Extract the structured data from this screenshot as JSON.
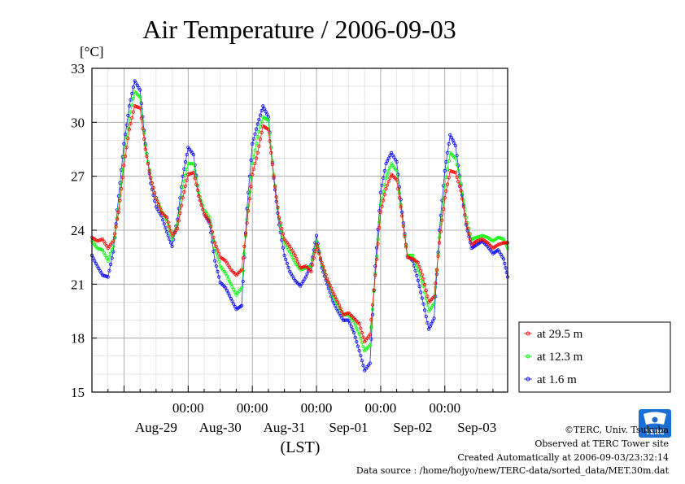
{
  "chart_data": {
    "type": "line",
    "title": "Air Temperature / 2006-09-03",
    "ylabel": "[°C]",
    "xlabel": "(LST)",
    "ylim": [
      15,
      33
    ],
    "yticks": [
      15,
      18,
      21,
      24,
      27,
      30,
      33
    ],
    "xlim": [
      "2006-08-28 12:00",
      "2006-09-03 23:30"
    ],
    "xticks": [
      {
        "time": "2006-08-30 00:00",
        "label": "00:00"
      },
      {
        "time": "2006-08-31 00:00",
        "label": "00:00"
      },
      {
        "time": "2006-09-01 00:00",
        "label": "00:00"
      },
      {
        "time": "2006-09-02 00:00",
        "label": "00:00"
      },
      {
        "time": "2006-09-03 00:00",
        "label": "00:00"
      }
    ],
    "day_labels": [
      {
        "time": "2006-08-29 12:00",
        "label": "Aug-29"
      },
      {
        "time": "2006-08-30 12:00",
        "label": "Aug-30"
      },
      {
        "time": "2006-08-31 12:00",
        "label": "Aug-31"
      },
      {
        "time": "2006-09-01 12:00",
        "label": "Sep-01"
      },
      {
        "time": "2006-09-02 12:00",
        "label": "Sep-02"
      },
      {
        "time": "2006-09-03 12:00",
        "label": "Sep-03"
      }
    ],
    "grid": true,
    "legend_position": "right",
    "series": [
      {
        "name": "at 29.5 m",
        "color": "#ff0000",
        "points": [
          [
            "2006-08-28 12:00",
            23.6
          ],
          [
            "2006-08-28 14:00",
            23.4
          ],
          [
            "2006-08-28 16:00",
            23.5
          ],
          [
            "2006-08-28 18:00",
            23.0
          ],
          [
            "2006-08-28 20:00",
            23.4
          ],
          [
            "2006-08-28 22:00",
            25.0
          ],
          [
            "2006-08-29 00:00",
            27.6
          ],
          [
            "2006-08-29 02:00",
            29.6
          ],
          [
            "2006-08-29 04:00",
            30.9
          ],
          [
            "2006-08-29 06:00",
            30.8
          ],
          [
            "2006-08-29 08:00",
            28.5
          ],
          [
            "2006-08-29 10:00",
            26.9
          ],
          [
            "2006-08-29 12:00",
            25.8
          ],
          [
            "2006-08-29 14:00",
            25.0
          ],
          [
            "2006-08-29 16:00",
            24.7
          ],
          [
            "2006-08-29 18:00",
            23.7
          ],
          [
            "2006-08-29 20:00",
            24.1
          ],
          [
            "2006-08-29 22:00",
            25.8
          ],
          [
            "2006-08-30 00:00",
            27.1
          ],
          [
            "2006-08-30 02:00",
            27.2
          ],
          [
            "2006-08-30 04:00",
            25.9
          ],
          [
            "2006-08-30 06:00",
            24.9
          ],
          [
            "2006-08-30 08:00",
            24.5
          ],
          [
            "2006-08-30 10:00",
            23.3
          ],
          [
            "2006-08-30 12:00",
            22.5
          ],
          [
            "2006-08-30 14:00",
            22.3
          ],
          [
            "2006-08-30 16:00",
            21.8
          ],
          [
            "2006-08-30 18:00",
            21.5
          ],
          [
            "2006-08-30 20:00",
            21.8
          ],
          [
            "2006-08-30 22:00",
            24.4
          ],
          [
            "2006-08-31 00:00",
            27.1
          ],
          [
            "2006-08-31 02:00",
            28.3
          ],
          [
            "2006-08-31 04:00",
            29.8
          ],
          [
            "2006-08-31 06:00",
            29.6
          ],
          [
            "2006-08-31 08:00",
            27.0
          ],
          [
            "2006-08-31 10:00",
            24.7
          ],
          [
            "2006-08-31 12:00",
            23.5
          ],
          [
            "2006-08-31 14:00",
            23.1
          ],
          [
            "2006-08-31 16:00",
            22.6
          ],
          [
            "2006-08-31 18:00",
            21.9
          ],
          [
            "2006-08-31 20:00",
            22.0
          ],
          [
            "2006-08-31 22:00",
            21.7
          ],
          [
            "2006-09-01 00:00",
            23.2
          ],
          [
            "2006-09-01 02:00",
            22.2
          ],
          [
            "2006-09-01 04:00",
            21.3
          ],
          [
            "2006-09-01 06:00",
            20.6
          ],
          [
            "2006-09-01 08:00",
            20.0
          ],
          [
            "2006-09-01 10:00",
            19.3
          ],
          [
            "2006-09-01 12:00",
            19.4
          ],
          [
            "2006-09-01 14:00",
            19.1
          ],
          [
            "2006-09-01 16:00",
            18.8
          ],
          [
            "2006-09-01 18:00",
            17.8
          ],
          [
            "2006-09-01 20:00",
            18.2
          ],
          [
            "2006-09-01 22:00",
            21.5
          ],
          [
            "2006-09-02 00:00",
            25.0
          ],
          [
            "2006-09-02 02:00",
            26.3
          ],
          [
            "2006-09-02 04:00",
            27.1
          ],
          [
            "2006-09-02 06:00",
            26.8
          ],
          [
            "2006-09-02 08:00",
            24.8
          ],
          [
            "2006-09-02 10:00",
            22.5
          ],
          [
            "2006-09-02 12:00",
            22.4
          ],
          [
            "2006-09-02 14:00",
            22.2
          ],
          [
            "2006-09-02 16:00",
            21.3
          ],
          [
            "2006-09-02 18:00",
            20.0
          ],
          [
            "2006-09-02 20:00",
            20.3
          ],
          [
            "2006-09-02 22:00",
            23.3
          ],
          [
            "2006-09-03 00:00",
            25.8
          ],
          [
            "2006-09-03 02:00",
            27.3
          ],
          [
            "2006-09-03 04:00",
            27.2
          ],
          [
            "2006-09-03 06:00",
            26.2
          ],
          [
            "2006-09-03 08:00",
            24.4
          ],
          [
            "2006-09-03 10:00",
            23.2
          ],
          [
            "2006-09-03 12:00",
            23.4
          ],
          [
            "2006-09-03 14:00",
            23.5
          ],
          [
            "2006-09-03 16:00",
            23.3
          ],
          [
            "2006-09-03 18:00",
            23.0
          ],
          [
            "2006-09-03 20:00",
            23.2
          ],
          [
            "2006-09-03 22:00",
            23.3
          ],
          [
            "2006-09-03 23:30",
            23.3
          ]
        ]
      },
      {
        "name": "at 12.3 m",
        "color": "#00ff00",
        "points": [
          [
            "2006-08-28 12:00",
            23.4
          ],
          [
            "2006-08-28 14:00",
            23.0
          ],
          [
            "2006-08-28 16:00",
            22.9
          ],
          [
            "2006-08-28 18:00",
            22.3
          ],
          [
            "2006-08-28 20:00",
            23.1
          ],
          [
            "2006-08-28 22:00",
            25.2
          ],
          [
            "2006-08-29 00:00",
            28.1
          ],
          [
            "2006-08-29 02:00",
            30.2
          ],
          [
            "2006-08-29 04:00",
            31.7
          ],
          [
            "2006-08-29 06:00",
            31.4
          ],
          [
            "2006-08-29 08:00",
            28.7
          ],
          [
            "2006-08-29 10:00",
            26.9
          ],
          [
            "2006-08-29 12:00",
            25.8
          ],
          [
            "2006-08-29 14:00",
            25.1
          ],
          [
            "2006-08-29 16:00",
            24.5
          ],
          [
            "2006-08-29 18:00",
            23.5
          ],
          [
            "2006-08-29 20:00",
            24.3
          ],
          [
            "2006-08-29 22:00",
            26.4
          ],
          [
            "2006-08-30 00:00",
            27.7
          ],
          [
            "2006-08-30 02:00",
            27.7
          ],
          [
            "2006-08-30 04:00",
            26.1
          ],
          [
            "2006-08-30 06:00",
            25.1
          ],
          [
            "2006-08-30 08:00",
            24.7
          ],
          [
            "2006-08-30 10:00",
            23.0
          ],
          [
            "2006-08-30 12:00",
            22.0
          ],
          [
            "2006-08-30 14:00",
            21.6
          ],
          [
            "2006-08-30 16:00",
            21.0
          ],
          [
            "2006-08-30 18:00",
            20.4
          ],
          [
            "2006-08-30 20:00",
            20.8
          ],
          [
            "2006-08-30 22:00",
            24.6
          ],
          [
            "2006-08-31 00:00",
            27.7
          ],
          [
            "2006-08-31 02:00",
            29.2
          ],
          [
            "2006-08-31 04:00",
            30.3
          ],
          [
            "2006-08-31 06:00",
            30.1
          ],
          [
            "2006-08-31 08:00",
            27.1
          ],
          [
            "2006-08-31 10:00",
            24.6
          ],
          [
            "2006-08-31 12:00",
            23.3
          ],
          [
            "2006-08-31 14:00",
            22.8
          ],
          [
            "2006-08-31 16:00",
            22.2
          ],
          [
            "2006-08-31 18:00",
            21.8
          ],
          [
            "2006-08-31 20:00",
            21.9
          ],
          [
            "2006-08-31 22:00",
            22.0
          ],
          [
            "2006-09-01 00:00",
            23.4
          ],
          [
            "2006-09-01 02:00",
            22.1
          ],
          [
            "2006-09-01 04:00",
            21.3
          ],
          [
            "2006-09-01 06:00",
            20.4
          ],
          [
            "2006-09-01 08:00",
            19.8
          ],
          [
            "2006-09-01 10:00",
            19.3
          ],
          [
            "2006-09-01 12:00",
            19.3
          ],
          [
            "2006-09-01 14:00",
            18.9
          ],
          [
            "2006-09-01 16:00",
            18.2
          ],
          [
            "2006-09-01 18:00",
            17.3
          ],
          [
            "2006-09-01 20:00",
            17.6
          ],
          [
            "2006-09-01 22:00",
            21.6
          ],
          [
            "2006-09-02 00:00",
            25.4
          ],
          [
            "2006-09-02 02:00",
            26.9
          ],
          [
            "2006-09-02 04:00",
            27.7
          ],
          [
            "2006-09-02 06:00",
            27.3
          ],
          [
            "2006-09-02 08:00",
            24.8
          ],
          [
            "2006-09-02 10:00",
            22.6
          ],
          [
            "2006-09-02 12:00",
            22.6
          ],
          [
            "2006-09-02 14:00",
            21.8
          ],
          [
            "2006-09-02 16:00",
            20.9
          ],
          [
            "2006-09-02 18:00",
            19.5
          ],
          [
            "2006-09-02 20:00",
            19.9
          ],
          [
            "2006-09-02 22:00",
            23.6
          ],
          [
            "2006-09-03 00:00",
            26.5
          ],
          [
            "2006-09-03 02:00",
            28.3
          ],
          [
            "2006-09-03 04:00",
            28.0
          ],
          [
            "2006-09-03 06:00",
            26.6
          ],
          [
            "2006-09-03 08:00",
            24.7
          ],
          [
            "2006-09-03 10:00",
            23.5
          ],
          [
            "2006-09-03 12:00",
            23.6
          ],
          [
            "2006-09-03 14:00",
            23.7
          ],
          [
            "2006-09-03 16:00",
            23.6
          ],
          [
            "2006-09-03 18:00",
            23.4
          ],
          [
            "2006-09-03 20:00",
            23.6
          ],
          [
            "2006-09-03 22:00",
            23.5
          ],
          [
            "2006-09-03 23:30",
            23.0
          ]
        ]
      },
      {
        "name": "at 1.6 m",
        "color": "#0000ff",
        "points": [
          [
            "2006-08-28 12:00",
            22.6
          ],
          [
            "2006-08-28 14:00",
            22.0
          ],
          [
            "2006-08-28 16:00",
            21.5
          ],
          [
            "2006-08-28 18:00",
            21.4
          ],
          [
            "2006-08-28 20:00",
            22.8
          ],
          [
            "2006-08-28 22:00",
            25.9
          ],
          [
            "2006-08-29 00:00",
            28.8
          ],
          [
            "2006-08-29 02:00",
            30.9
          ],
          [
            "2006-08-29 04:00",
            32.3
          ],
          [
            "2006-08-29 06:00",
            31.8
          ],
          [
            "2006-08-29 08:00",
            28.8
          ],
          [
            "2006-08-29 10:00",
            26.6
          ],
          [
            "2006-08-29 12:00",
            25.3
          ],
          [
            "2006-08-29 14:00",
            24.8
          ],
          [
            "2006-08-29 16:00",
            23.9
          ],
          [
            "2006-08-29 18:00",
            23.1
          ],
          [
            "2006-08-29 20:00",
            24.6
          ],
          [
            "2006-08-29 22:00",
            27.0
          ],
          [
            "2006-08-30 00:00",
            28.6
          ],
          [
            "2006-08-30 02:00",
            28.2
          ],
          [
            "2006-08-30 04:00",
            25.9
          ],
          [
            "2006-08-30 06:00",
            24.9
          ],
          [
            "2006-08-30 08:00",
            24.4
          ],
          [
            "2006-08-30 10:00",
            22.3
          ],
          [
            "2006-08-30 12:00",
            21.1
          ],
          [
            "2006-08-30 14:00",
            20.8
          ],
          [
            "2006-08-30 16:00",
            20.2
          ],
          [
            "2006-08-30 18:00",
            19.6
          ],
          [
            "2006-08-30 20:00",
            19.8
          ],
          [
            "2006-08-30 22:00",
            25.2
          ],
          [
            "2006-08-31 00:00",
            28.8
          ],
          [
            "2006-08-31 02:00",
            29.9
          ],
          [
            "2006-08-31 04:00",
            30.9
          ],
          [
            "2006-08-31 06:00",
            30.3
          ],
          [
            "2006-08-31 08:00",
            26.9
          ],
          [
            "2006-08-31 10:00",
            24.3
          ],
          [
            "2006-08-31 12:00",
            22.6
          ],
          [
            "2006-08-31 14:00",
            21.7
          ],
          [
            "2006-08-31 16:00",
            21.2
          ],
          [
            "2006-08-31 18:00",
            20.9
          ],
          [
            "2006-08-31 20:00",
            21.4
          ],
          [
            "2006-08-31 22:00",
            22.1
          ],
          [
            "2006-09-01 00:00",
            23.7
          ],
          [
            "2006-09-01 02:00",
            21.9
          ],
          [
            "2006-09-01 04:00",
            21.0
          ],
          [
            "2006-09-01 06:00",
            20.1
          ],
          [
            "2006-09-01 08:00",
            19.5
          ],
          [
            "2006-09-01 10:00",
            19.0
          ],
          [
            "2006-09-01 12:00",
            19.0
          ],
          [
            "2006-09-01 14:00",
            18.3
          ],
          [
            "2006-09-01 16:00",
            17.3
          ],
          [
            "2006-09-01 18:00",
            16.2
          ],
          [
            "2006-09-01 20:00",
            16.6
          ],
          [
            "2006-09-01 22:00",
            22.0
          ],
          [
            "2006-09-02 00:00",
            26.1
          ],
          [
            "2006-09-02 02:00",
            27.7
          ],
          [
            "2006-09-02 04:00",
            28.3
          ],
          [
            "2006-09-02 06:00",
            27.8
          ],
          [
            "2006-09-02 08:00",
            25.0
          ],
          [
            "2006-09-02 10:00",
            22.6
          ],
          [
            "2006-09-02 12:00",
            22.3
          ],
          [
            "2006-09-02 14:00",
            21.2
          ],
          [
            "2006-09-02 16:00",
            19.9
          ],
          [
            "2006-09-02 18:00",
            18.5
          ],
          [
            "2006-09-02 20:00",
            19.1
          ],
          [
            "2006-09-02 22:00",
            24.0
          ],
          [
            "2006-09-03 00:00",
            27.3
          ],
          [
            "2006-09-03 02:00",
            29.3
          ],
          [
            "2006-09-03 04:00",
            28.7
          ],
          [
            "2006-09-03 06:00",
            26.5
          ],
          [
            "2006-09-03 08:00",
            24.3
          ],
          [
            "2006-09-03 10:00",
            23.0
          ],
          [
            "2006-09-03 12:00",
            23.2
          ],
          [
            "2006-09-03 14:00",
            23.4
          ],
          [
            "2006-09-03 16:00",
            23.1
          ],
          [
            "2006-09-03 18:00",
            22.7
          ],
          [
            "2006-09-03 20:00",
            22.9
          ],
          [
            "2006-09-03 22:00",
            22.4
          ],
          [
            "2006-09-03 23:30",
            21.4
          ]
        ]
      }
    ]
  },
  "footer": {
    "copyright": "©TERC, Univ. Tsukuba",
    "observed": "Observed at TERC Tower site",
    "created": "Created Automatically at 2006-09-03/23:32:14",
    "source": "Data source : /home/hojyo/new/TERC-data/sorted_data/MET.30m.dat"
  },
  "logo": {
    "text": "TERC",
    "color": "#1a6fd0"
  }
}
